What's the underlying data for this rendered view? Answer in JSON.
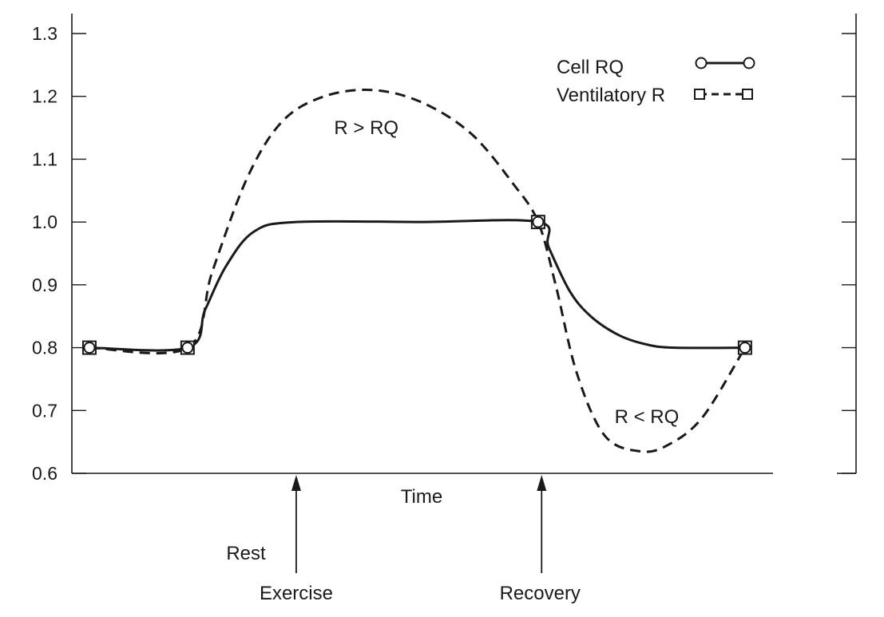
{
  "chart_data": {
    "type": "line",
    "xlabel": "Time",
    "ylabel": "",
    "title": "",
    "ylim": [
      0.6,
      1.3
    ],
    "y_ticks": [
      0.6,
      0.7,
      0.8,
      0.9,
      1.0,
      1.1,
      1.2,
      1.3
    ],
    "y_tick_labels": [
      "0.6",
      "0.7",
      "0.8",
      "0.9",
      "1.0",
      "1.1",
      "1.2",
      "1.3"
    ],
    "xlim": [
      0,
      100
    ],
    "grid": false,
    "legend_placement": "top-right",
    "series": [
      {
        "name": "Cell RQ",
        "style": "solid",
        "marker": "circle",
        "points": [
          [
            2.5,
            0.8
          ],
          [
            16.5,
            0.8
          ],
          [
            19,
            0.86
          ],
          [
            22,
            0.93
          ],
          [
            26,
            0.985
          ],
          [
            32,
            1.0
          ],
          [
            50,
            1.0
          ],
          [
            66.5,
            1.0
          ],
          [
            68,
            0.96
          ],
          [
            71,
            0.89
          ],
          [
            74,
            0.85
          ],
          [
            78,
            0.82
          ],
          [
            82,
            0.805
          ],
          [
            86,
            0.8
          ],
          [
            96,
            0.8
          ]
        ],
        "markers_at": [
          [
            2.5,
            0.8
          ],
          [
            16.5,
            0.8
          ],
          [
            66.5,
            1.0
          ],
          [
            96,
            0.8
          ]
        ]
      },
      {
        "name": "Ventilatory R",
        "style": "dashed",
        "marker": "square",
        "points": [
          [
            2.5,
            0.8
          ],
          [
            16.5,
            0.8
          ],
          [
            20,
            0.92
          ],
          [
            25,
            1.07
          ],
          [
            30,
            1.16
          ],
          [
            36,
            1.2
          ],
          [
            43,
            1.21
          ],
          [
            50,
            1.19
          ],
          [
            57,
            1.14
          ],
          [
            63,
            1.06
          ],
          [
            66.5,
            1.0
          ],
          [
            69,
            0.9
          ],
          [
            72,
            0.76
          ],
          [
            76,
            0.66
          ],
          [
            81,
            0.635
          ],
          [
            85,
            0.645
          ],
          [
            90,
            0.69
          ],
          [
            96,
            0.8
          ]
        ],
        "markers_at": [
          [
            2.5,
            0.8
          ],
          [
            16.5,
            0.8
          ],
          [
            66.5,
            1.0
          ],
          [
            96,
            0.8
          ]
        ]
      }
    ],
    "annotations": [
      {
        "text": "R > RQ",
        "x": 42,
        "y": 1.15
      },
      {
        "text": "R < RQ",
        "x": 82,
        "y": 0.69
      }
    ],
    "phase_markers": [
      {
        "x": 32,
        "labels": [
          "Rest",
          "Exercise"
        ]
      },
      {
        "x": 67,
        "labels": [
          "Recovery"
        ]
      }
    ]
  }
}
